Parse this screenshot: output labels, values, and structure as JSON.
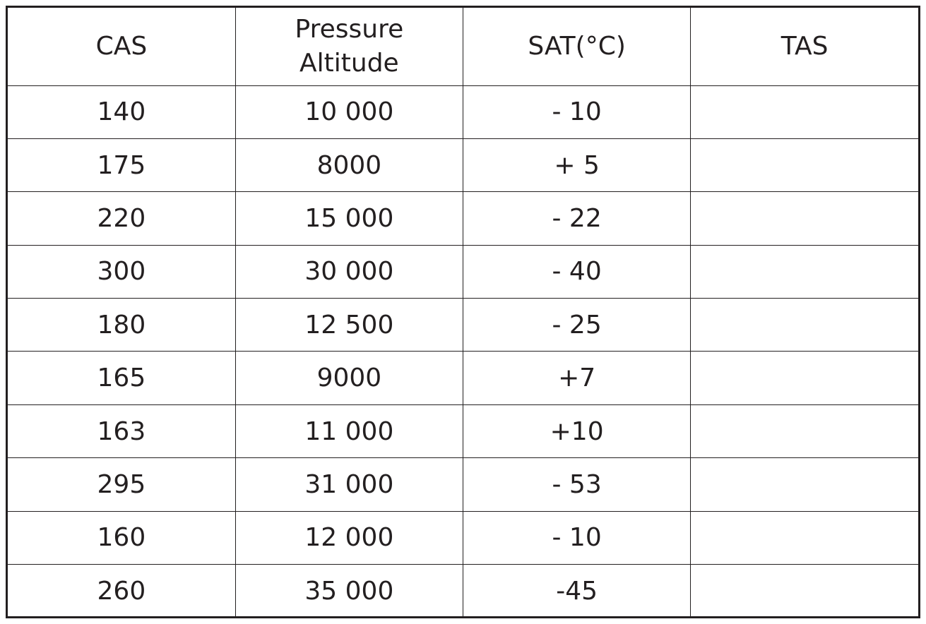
{
  "table": {
    "headers": [
      {
        "lines": [
          "CAS"
        ]
      },
      {
        "lines": [
          "Pressure",
          "Altitude"
        ]
      },
      {
        "lines": [
          "SAT(°C)"
        ]
      },
      {
        "lines": [
          "TAS"
        ]
      }
    ],
    "rows": [
      [
        "140",
        "10 000",
        "- 10",
        ""
      ],
      [
        "175",
        "8000",
        " + 5",
        ""
      ],
      [
        "220",
        "15 000",
        "- 22",
        ""
      ],
      [
        "300",
        "30 000",
        "- 40",
        ""
      ],
      [
        "180",
        "12 500",
        "- 25",
        ""
      ],
      [
        "165",
        "9000",
        "+7",
        ""
      ],
      [
        "163",
        "11 000",
        "+10",
        ""
      ],
      [
        "295",
        "31 000",
        "- 53",
        ""
      ],
      [
        "160",
        "12 000",
        "- 10",
        ""
      ],
      [
        "260",
        "35 000",
        "-45",
        ""
      ]
    ]
  }
}
